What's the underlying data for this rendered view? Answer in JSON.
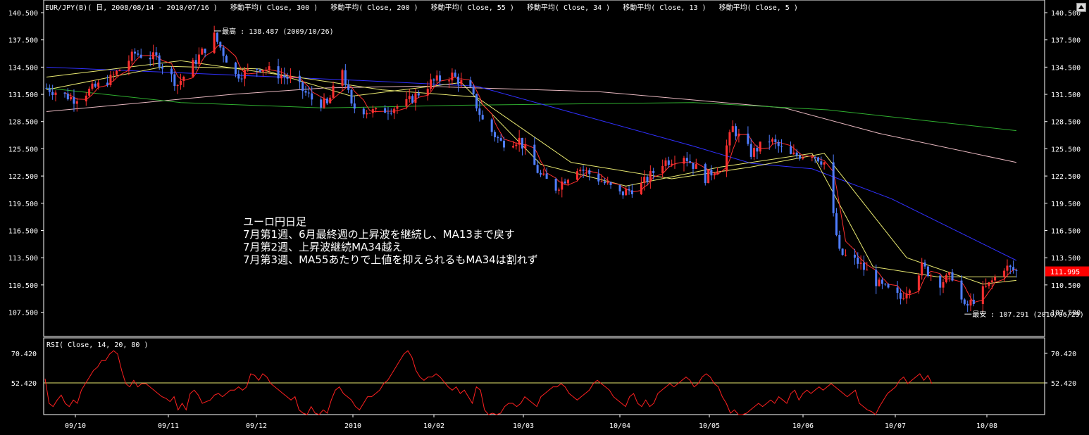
{
  "header": {
    "title": "EUR/JPY(B)( 日, 2008/08/14 - 2010/07/16 )",
    "indicators": [
      "移動平均( Close, 300 )",
      "移動平均( Close, 200 )",
      "移動平均( Close, 55 )",
      "移動平均( Close, 34 )",
      "移動平均( Close, 13 )",
      "移動平均( Close, 5 )"
    ]
  },
  "annotations": {
    "high_label": "最高 : 138.487 (2009/10/26)",
    "low_label": "最安 : 107.291 (2010/06/29)",
    "note_lines": [
      "ユーロ円日足",
      "7月第1週、6月最終週の上昇波を継続し、MA13まで戻す",
      "7月第2週、上昇波継続MA34越え",
      "7月第3週、MA55あたりで上値を抑えられるもMA34は割れず"
    ]
  },
  "price_tag": "111.995",
  "rsi": {
    "title": "RSI( Close, 14, 20, 80 )",
    "ticks": [
      "70.420",
      "52.420"
    ],
    "reference": 52.42
  },
  "colors": {
    "background": "#000000",
    "up": "#ff3030",
    "down": "#4f7dff",
    "ma300": "#e8b8c0",
    "ma200": "#2fae2f",
    "ma55": "#3030ff",
    "ma34": "#e8e870",
    "ma13": "#e8e870",
    "ma5": "#ff3030",
    "rsi": "#ff2020",
    "rsi_ref": "#e8e870",
    "price_tag": "#ff0000"
  },
  "chart_data": {
    "type": "candlestick",
    "y_ticks": [
      "140.500",
      "137.500",
      "134.500",
      "131.500",
      "128.500",
      "125.500",
      "122.500",
      "119.500",
      "116.500",
      "113.500",
      "110.500",
      "107.500"
    ],
    "ylim": [
      105.5,
      141.6
    ],
    "x_ticks": [
      "09/10",
      "09/11",
      "09/12",
      "2010",
      "10/02",
      "10/03",
      "10/04",
      "10/05",
      "10/06",
      "10/07",
      "10/08"
    ],
    "close_keypoints": [
      {
        "date": "2009-09-01",
        "close": 132.2
      },
      {
        "date": "2009-09-10",
        "close": 131.0
      },
      {
        "date": "2009-09-22",
        "close": 133.2
      },
      {
        "date": "2009-09-30",
        "close": 136.0
      },
      {
        "date": "2009-10-07",
        "close": 135.5
      },
      {
        "date": "2009-10-14",
        "close": 132.6
      },
      {
        "date": "2009-10-26",
        "close": 137.9
      },
      {
        "date": "2009-11-02",
        "close": 133.6
      },
      {
        "date": "2009-11-10",
        "close": 134.5
      },
      {
        "date": "2009-11-20",
        "close": 133.2
      },
      {
        "date": "2009-11-27",
        "close": 131.0
      },
      {
        "date": "2009-12-02",
        "close": 130.3
      },
      {
        "date": "2009-12-07",
        "close": 134.3
      },
      {
        "date": "2009-12-10",
        "close": 130.1
      },
      {
        "date": "2009-12-18",
        "close": 129.5
      },
      {
        "date": "2009-12-28",
        "close": 130.5
      },
      {
        "date": "2010-01-05",
        "close": 132.8
      },
      {
        "date": "2010-01-12",
        "close": 133.6
      },
      {
        "date": "2010-01-18",
        "close": 131.9
      },
      {
        "date": "2010-01-22",
        "close": 128.6
      },
      {
        "date": "2010-01-28",
        "close": 126.2
      },
      {
        "date": "2010-02-03",
        "close": 126.5
      },
      {
        "date": "2010-02-10",
        "close": 122.5
      },
      {
        "date": "2010-02-15",
        "close": 121.2
      },
      {
        "date": "2010-02-22",
        "close": 123.5
      },
      {
        "date": "2010-03-01",
        "close": 122.2
      },
      {
        "date": "2010-03-08",
        "close": 120.5
      },
      {
        "date": "2010-03-15",
        "close": 121.5
      },
      {
        "date": "2010-03-22",
        "close": 124.0
      },
      {
        "date": "2010-03-29",
        "close": 124.8
      },
      {
        "date": "2010-04-05",
        "close": 122.3
      },
      {
        "date": "2010-04-10",
        "close": 123.8
      },
      {
        "date": "2010-04-14",
        "close": 127.8
      },
      {
        "date": "2010-04-20",
        "close": 125.0
      },
      {
        "date": "2010-04-26",
        "close": 126.5
      },
      {
        "date": "2010-05-03",
        "close": 124.7
      },
      {
        "date": "2010-05-10",
        "close": 125.0
      },
      {
        "date": "2010-05-14",
        "close": 124.0
      },
      {
        "date": "2010-05-19",
        "close": 114.0
      },
      {
        "date": "2010-05-25",
        "close": 113.0
      },
      {
        "date": "2010-06-01",
        "close": 110.5
      },
      {
        "date": "2010-06-08",
        "close": 109.0
      },
      {
        "date": "2010-06-15",
        "close": 112.5
      },
      {
        "date": "2010-06-21",
        "close": 110.8
      },
      {
        "date": "2010-06-25",
        "close": 111.5
      },
      {
        "date": "2010-06-29",
        "close": 107.9
      },
      {
        "date": "2010-07-07",
        "close": 110.5
      },
      {
        "date": "2010-07-12",
        "close": 112.5
      },
      {
        "date": "2010-07-16",
        "close": 111.995
      }
    ],
    "moving_averages": [
      {
        "name": "移動平均( Close, 300 )",
        "points": [
          [
            "2009-09-01",
            129.6
          ],
          [
            "2009-11-01",
            131.5
          ],
          [
            "2009-12-01",
            132.2
          ],
          [
            "2010-01-01",
            132.4
          ],
          [
            "2010-03-01",
            131.8
          ],
          [
            "2010-05-01",
            130.0
          ],
          [
            "2010-06-01",
            127.2
          ],
          [
            "2010-07-16",
            124.0
          ]
        ]
      },
      {
        "name": "移動平均( Close, 200 )",
        "points": [
          [
            "2009-09-01",
            132.2
          ],
          [
            "2009-10-15",
            130.6
          ],
          [
            "2009-12-01",
            130.0
          ],
          [
            "2010-01-15",
            130.3
          ],
          [
            "2010-04-01",
            130.6
          ],
          [
            "2010-05-15",
            129.8
          ],
          [
            "2010-07-16",
            127.5
          ]
        ]
      },
      {
        "name": "移動平均( Close, 55 )",
        "points": [
          [
            "2009-09-01",
            134.5
          ],
          [
            "2009-12-15",
            133.0
          ],
          [
            "2010-01-20",
            132.4
          ],
          [
            "2010-04-01",
            125.8
          ],
          [
            "2010-04-20",
            123.9
          ],
          [
            "2010-05-10",
            123.3
          ],
          [
            "2010-06-05",
            120.0
          ],
          [
            "2010-07-16",
            113.2
          ]
        ]
      },
      {
        "name": "移動平均( Close, 34 )",
        "points": [
          [
            "2009-09-01",
            133.4
          ],
          [
            "2009-10-15",
            135.2
          ],
          [
            "2009-11-20",
            133.5
          ],
          [
            "2009-12-20",
            132.0
          ],
          [
            "2010-01-20",
            131.2
          ],
          [
            "2010-02-20",
            124.0
          ],
          [
            "2010-03-25",
            122.2
          ],
          [
            "2010-04-20",
            123.5
          ],
          [
            "2010-05-14",
            125.0
          ],
          [
            "2010-06-10",
            113.5
          ],
          [
            "2010-07-05",
            110.6
          ],
          [
            "2010-07-16",
            111.0
          ]
        ]
      },
      {
        "name": "移動平均( Close, 13 )",
        "points": [
          [
            "2009-09-01",
            132.0
          ],
          [
            "2009-10-10",
            134.6
          ],
          [
            "2009-11-10",
            134.3
          ],
          [
            "2009-12-10",
            131.3
          ],
          [
            "2010-01-15",
            132.8
          ],
          [
            "2010-02-10",
            123.8
          ],
          [
            "2010-03-10",
            121.4
          ],
          [
            "2010-04-10",
            123.5
          ],
          [
            "2010-05-10",
            125.0
          ],
          [
            "2010-05-30",
            112.5
          ],
          [
            "2010-06-20",
            111.4
          ],
          [
            "2010-07-16",
            111.4
          ]
        ]
      }
    ],
    "rsi_values": [
      55,
      40,
      38,
      42,
      45,
      40,
      38,
      42,
      40,
      48,
      52,
      56,
      60,
      62,
      66,
      66,
      70,
      72,
      70,
      60,
      52,
      50,
      54,
      50,
      52,
      52,
      50,
      48,
      46,
      44,
      43,
      41,
      44,
      36,
      40,
      36,
      46,
      48,
      45,
      40,
      41,
      42,
      45,
      46,
      44,
      46,
      48,
      48,
      50,
      48,
      50,
      58,
      57,
      54,
      58,
      56,
      52,
      50,
      48,
      46,
      44,
      42,
      44,
      36,
      34,
      32,
      38,
      34,
      30,
      36,
      34,
      42,
      48,
      50,
      46,
      44,
      42,
      38,
      36,
      40,
      44,
      44,
      46,
      48,
      52,
      54,
      58,
      62,
      66,
      70,
      72,
      68,
      60,
      56,
      54,
      56,
      56,
      58,
      56,
      53,
      50,
      48,
      50,
      46,
      48,
      44,
      40,
      50,
      48,
      36,
      30,
      34,
      32,
      34,
      38,
      40,
      40,
      38,
      40,
      44,
      42,
      40,
      38,
      44,
      46,
      48,
      50,
      50,
      52,
      50,
      46,
      44,
      42,
      44,
      46,
      48,
      52,
      54,
      52,
      50,
      48,
      44,
      42,
      40,
      38,
      44,
      46,
      40,
      38,
      42,
      38,
      40,
      46,
      48,
      50,
      52,
      50,
      52,
      54,
      56,
      54,
      50,
      52,
      56,
      58,
      56,
      52,
      50,
      44,
      40,
      34,
      36,
      32,
      30,
      34,
      36,
      38,
      40,
      38,
      40,
      42,
      40,
      44,
      42,
      40,
      46,
      48,
      42,
      46,
      48,
      46,
      48,
      50,
      48,
      50,
      52,
      50,
      48,
      46,
      44,
      46,
      48,
      40,
      38,
      36,
      35,
      33,
      38,
      42,
      46,
      48,
      50,
      54,
      56,
      52,
      54,
      56,
      58,
      54,
      57,
      52
    ]
  }
}
